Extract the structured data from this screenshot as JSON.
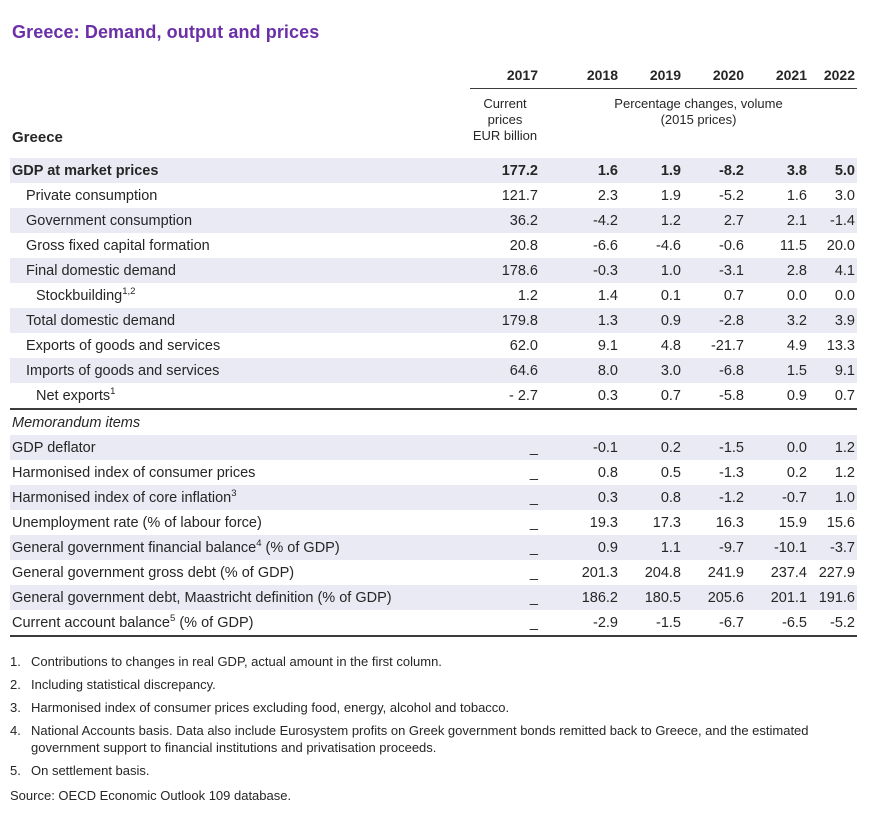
{
  "title": "Greece: Demand, output and prices",
  "colors": {
    "title_accent": "#6B2FA8",
    "row_shade": "#EAEAF4",
    "rule": "#3B3B3B",
    "text": "#262626"
  },
  "table": {
    "region_label": "Greece",
    "years": [
      "2017",
      "2018",
      "2019",
      "2020",
      "2021",
      "2022"
    ],
    "subheader_2017": [
      "Current",
      "prices",
      "EUR billion"
    ],
    "subheader_volume": [
      "Percentage changes, volume",
      "(2015 prices)"
    ],
    "rows": [
      {
        "pre": "GDP at market prices",
        "sup": "",
        "post": "",
        "bold": true,
        "indent": 0,
        "shaded": true,
        "values": [
          "177.2",
          "1.6",
          "1.9",
          "-8.2",
          "3.8",
          "5.0"
        ]
      },
      {
        "pre": "Private consumption",
        "sup": "",
        "post": "",
        "indent": 1,
        "shaded": false,
        "values": [
          "121.7",
          "2.3",
          "1.9",
          "-5.2",
          "1.6",
          "3.0"
        ]
      },
      {
        "pre": "Government consumption",
        "sup": "",
        "post": "",
        "indent": 1,
        "shaded": true,
        "values": [
          "36.2",
          "-4.2",
          "1.2",
          "2.7",
          "2.1",
          "-1.4"
        ]
      },
      {
        "pre": "Gross fixed capital formation",
        "sup": "",
        "post": "",
        "indent": 1,
        "shaded": false,
        "values": [
          "20.8",
          "-6.6",
          "-4.6",
          "-0.6",
          "11.5",
          "20.0"
        ]
      },
      {
        "pre": "Final domestic demand",
        "sup": "",
        "post": "",
        "indent": 1,
        "shaded": true,
        "values": [
          "178.6",
          "-0.3",
          "1.0",
          "-3.1",
          "2.8",
          "4.1"
        ]
      },
      {
        "pre": "Stockbuilding",
        "sup": "1,2",
        "post": "",
        "indent": 2,
        "shaded": false,
        "values": [
          "1.2",
          "1.4",
          "0.1",
          "0.7",
          "0.0",
          "0.0"
        ]
      },
      {
        "pre": "Total domestic demand",
        "sup": "",
        "post": "",
        "indent": 1,
        "shaded": true,
        "values": [
          "179.8",
          "1.3",
          "0.9",
          "-2.8",
          "3.2",
          "3.9"
        ]
      },
      {
        "pre": "Exports of goods and services",
        "sup": "",
        "post": "",
        "indent": 1,
        "shaded": false,
        "values": [
          "62.0",
          "9.1",
          "4.8",
          "-21.7",
          "4.9",
          "13.3"
        ]
      },
      {
        "pre": "Imports of goods and services",
        "sup": "",
        "post": "",
        "indent": 1,
        "shaded": true,
        "values": [
          "64.6",
          "8.0",
          "3.0",
          "-6.8",
          "1.5",
          "9.1"
        ]
      },
      {
        "pre": "Net exports",
        "sup": "1",
        "post": "",
        "indent": 2,
        "shaded": false,
        "values": [
          "- 2.7",
          "0.3",
          "0.7",
          "-5.8",
          "0.9",
          "0.7"
        ]
      },
      {
        "pre": "Memorandum items",
        "sup": "",
        "post": "",
        "italic": true,
        "indent": 0,
        "shaded": false,
        "separator_above": true,
        "values": [
          "",
          "",
          "",
          "",
          "",
          ""
        ]
      },
      {
        "pre": "GDP deflator",
        "sup": "",
        "post": "",
        "indent": 0,
        "shaded": true,
        "values": [
          "_",
          "-0.1",
          "0.2",
          "-1.5",
          "0.0",
          "1.2"
        ]
      },
      {
        "pre": "Harmonised index of consumer prices",
        "sup": "",
        "post": "",
        "indent": 0,
        "shaded": false,
        "values": [
          "_",
          "0.8",
          "0.5",
          "-1.3",
          "0.2",
          "1.2"
        ]
      },
      {
        "pre": "Harmonised index of core inflation",
        "sup": "3",
        "post": "",
        "indent": 0,
        "shaded": true,
        "values": [
          "_",
          "0.3",
          "0.8",
          "-1.2",
          "-0.7",
          "1.0"
        ]
      },
      {
        "pre": "Unemployment rate (% of labour force)",
        "sup": "",
        "post": "",
        "indent": 0,
        "shaded": false,
        "values": [
          "_",
          "19.3",
          "17.3",
          "16.3",
          "15.9",
          "15.6"
        ]
      },
      {
        "pre": "General government financial balance",
        "sup": "4",
        "post": " (% of GDP)",
        "indent": 0,
        "shaded": true,
        "values": [
          "_",
          "0.9",
          "1.1",
          "-9.7",
          "-10.1",
          "-3.7"
        ]
      },
      {
        "pre": "General government gross debt (% of GDP)",
        "sup": "",
        "post": "",
        "indent": 0,
        "shaded": false,
        "values": [
          "_",
          "201.3",
          "204.8",
          "241.9",
          "237.4",
          "227.9"
        ]
      },
      {
        "pre": "General government debt, Maastricht definition (% of GDP)",
        "sup": "",
        "post": "",
        "indent": 0,
        "shaded": true,
        "values": [
          "_",
          "186.2",
          "180.5",
          "205.6",
          "201.1",
          "191.6"
        ]
      },
      {
        "pre": "Current account balance",
        "sup": "5",
        "post": " (% of GDP)",
        "indent": 0,
        "shaded": false,
        "values": [
          "_",
          "-2.9",
          "-1.5",
          "-6.7",
          "-6.5",
          "-5.2"
        ]
      }
    ]
  },
  "footnotes": [
    {
      "num": "1.",
      "text": "Contributions to changes in real GDP, actual amount in the first column."
    },
    {
      "num": "2.",
      "text": "Including statistical discrepancy."
    },
    {
      "num": "3.",
      "text": "Harmonised index of consumer prices excluding food, energy, alcohol and tobacco."
    },
    {
      "num": "4.",
      "text": "National Accounts basis. Data also include Eurosystem profits on Greek government bonds remitted back to Greece, and the estimated government support to financial institutions and privatisation proceeds."
    },
    {
      "num": "5.",
      "text": "On settlement basis."
    }
  ],
  "source": "Source:  OECD Economic Outlook 109 database."
}
